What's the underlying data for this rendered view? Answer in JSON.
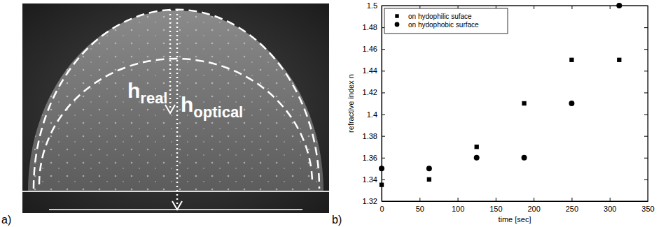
{
  "photo": {
    "panel_label": "a)",
    "annotations": [
      {
        "base": "h",
        "subscript": "real"
      },
      {
        "base": "h",
        "subscript": "optical"
      }
    ]
  },
  "chart_data": {
    "type": "scatter",
    "panel_label": "b)",
    "xlabel": "time [sec]",
    "ylabel": "refractive index n",
    "xlim": [
      0,
      350
    ],
    "ylim": [
      1.32,
      1.5
    ],
    "xticks": [
      0,
      50,
      100,
      150,
      200,
      250,
      300,
      350
    ],
    "yticks": [
      1.32,
      1.34,
      1.36,
      1.38,
      1.4,
      1.42,
      1.44,
      1.46,
      1.48,
      1.5
    ],
    "legend": "upper left",
    "x": [
      0,
      62.5,
      125,
      187.5,
      250,
      312.5
    ],
    "series": [
      {
        "name": "on hydophilic suface",
        "color": "#000000",
        "marker": "square",
        "values": [
          1.335,
          1.34,
          1.37,
          1.41,
          1.45,
          1.45
        ]
      },
      {
        "name": "on hydophobic surface",
        "color": "#000000",
        "marker": "circle",
        "values": [
          1.35,
          1.35,
          1.36,
          1.36,
          1.41,
          1.5
        ]
      }
    ]
  }
}
